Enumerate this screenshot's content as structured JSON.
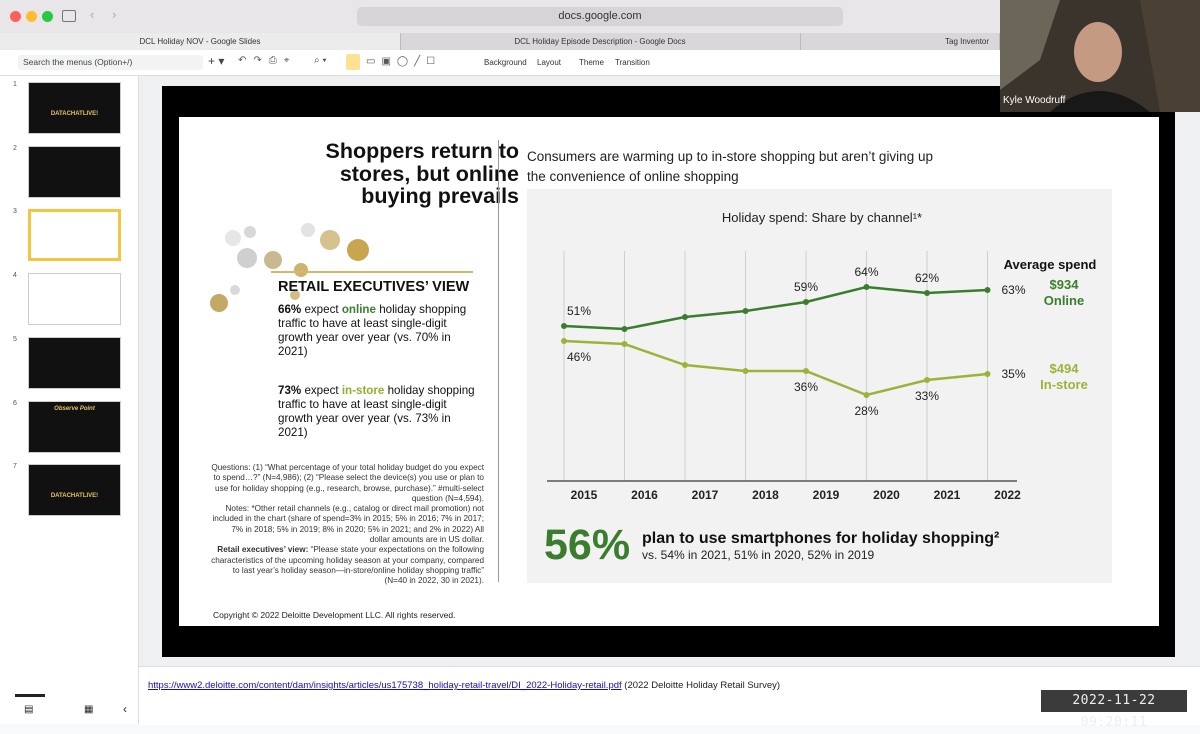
{
  "browser": {
    "url": "docs.google.com",
    "tabs": [
      "DCL Holiday NOV - Google Slides",
      "DCL Holiday Episode Description - Google Docs",
      "Tag Inventor"
    ]
  },
  "toolbar": {
    "search": "Search the menus (Option+/)",
    "menus": [
      "Background",
      "Layout",
      "Theme",
      "Transition"
    ]
  },
  "filmstrip": [
    {
      "number": 1,
      "text": "DATACHATLIVE!"
    },
    {
      "number": 2
    },
    {
      "number": 3
    },
    {
      "number": 4
    },
    {
      "number": 5
    },
    {
      "number": 6,
      "text": "Observe Point"
    },
    {
      "number": 7,
      "text": "DATACHATLIVE!"
    }
  ],
  "video": {
    "name": "Kyle Woodruff"
  },
  "slide": {
    "title": [
      "Shoppers return to",
      "stores, but online",
      "buying prevails"
    ],
    "exec_view": {
      "heading": "RETAIL EXECUTIVES’ VIEW",
      "points": [
        {
          "stat": "66%",
          "pre": " expect ",
          "channel": "online",
          "post": " holiday shopping traffic to have at least single-digit growth year over year (vs. 70% in 2021)"
        },
        {
          "stat": "73%",
          "pre": " expect ",
          "channel": "in-store",
          "post": " holiday shopping traffic to have at least single-digit growth year over year (vs. 73% in 2021)"
        }
      ]
    },
    "footnotes": {
      "questions": "Questions: (1) “What percentage of your total holiday budget do you expect to spend…?” (N=4,986); (2) “Please select the device(s) you use or plan to use for holiday shopping (e.g., research, browse, purchase).” #multi-select question (N=4,594).",
      "notes": "Notes: *Other retail channels (e.g., catalog or direct mail promotion) not included in the chart (share of spend=3% in 2015; 5% in 2016; 7% in 2017; 7% in 2018; 5% in 2019; 8% in 2020; 5% in 2021; and 2% in 2022) All dollar amounts are in US dollar.",
      "exec_label": "Retail executives’ view:",
      "exec_text": " “Please state your expectations on the following characteristics of the upcoming holiday season at your company, compared to last year’s holiday season—in-store/online holiday shopping traffic” (N=40 in 2022, 30 in 2021)."
    },
    "subheading": "Consumers are warming up to in-store shopping but aren’t giving up the convenience of online shopping",
    "chart": {
      "type": "line",
      "title": "Holiday spend: Share by channel¹*",
      "categories": [
        "2015",
        "2016",
        "2017",
        "2018",
        "2019",
        "2020",
        "2021",
        "2022"
      ],
      "series": [
        {
          "name": "Online",
          "color": "#3b7d2e",
          "values": [
            51,
            50,
            54,
            56,
            59,
            64,
            62,
            63
          ],
          "value_labels": [
            "51%",
            null,
            null,
            null,
            "59%",
            "64%",
            "62%",
            "63%"
          ]
        },
        {
          "name": "In-store",
          "color": "#9ab43a",
          "values": [
            46,
            45,
            38,
            36,
            36,
            28,
            33,
            35
          ],
          "value_labels": [
            "46%",
            null,
            null,
            null,
            "36%",
            "28%",
            "33%",
            "35%"
          ]
        }
      ],
      "average_spend": {
        "title": "Average spend",
        "amounts": [
          "$934",
          "$494"
        ]
      }
    },
    "smartphone": {
      "stat": "56%",
      "headline": "plan to use smartphones for holiday shopping²",
      "detail": "vs. 54% in 2021, 51% in 2020, 52% in 2019"
    },
    "copyright": "Copyright © 2022 Deloitte Development LLC. All rights reserved."
  },
  "notes": {
    "link": "https://www2.deloitte.com/content/dam/insights/articles/us175738_holiday-retail-travel/DI_2022-Holiday-retail.pdf",
    "text": " (2022 Deloitte Holiday Retail Survey)"
  },
  "timestamp": "2022-11-22  09:20:11"
}
